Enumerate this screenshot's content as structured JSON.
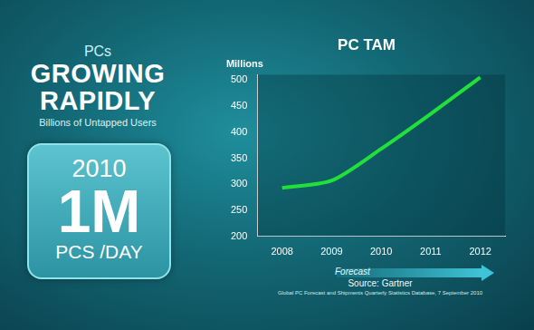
{
  "panel": {
    "kicker": "PCs",
    "headline": [
      "GROWING",
      "RAPIDLY"
    ],
    "subhead": "Billions of Untapped Users",
    "stat": {
      "year": "2010",
      "value": "1M",
      "unit": "PCS /DAY"
    }
  },
  "chart_data": {
    "type": "line",
    "title": "PC TAM",
    "y_label": "Millions",
    "categories": [
      "2008",
      "2009",
      "2010",
      "2011",
      "2012"
    ],
    "values": [
      293,
      307,
      368,
      435,
      505
    ],
    "color": "#22e03a",
    "ylim": [
      200,
      510
    ],
    "yticks": [
      200,
      250,
      300,
      350,
      400,
      450,
      500
    ],
    "grid": false,
    "annotation": "Forecast",
    "source": "Source: Gartner",
    "source_detail": "Global PC Forecast and Shipments Quarterly Statistics Database, 7 September 2010"
  }
}
